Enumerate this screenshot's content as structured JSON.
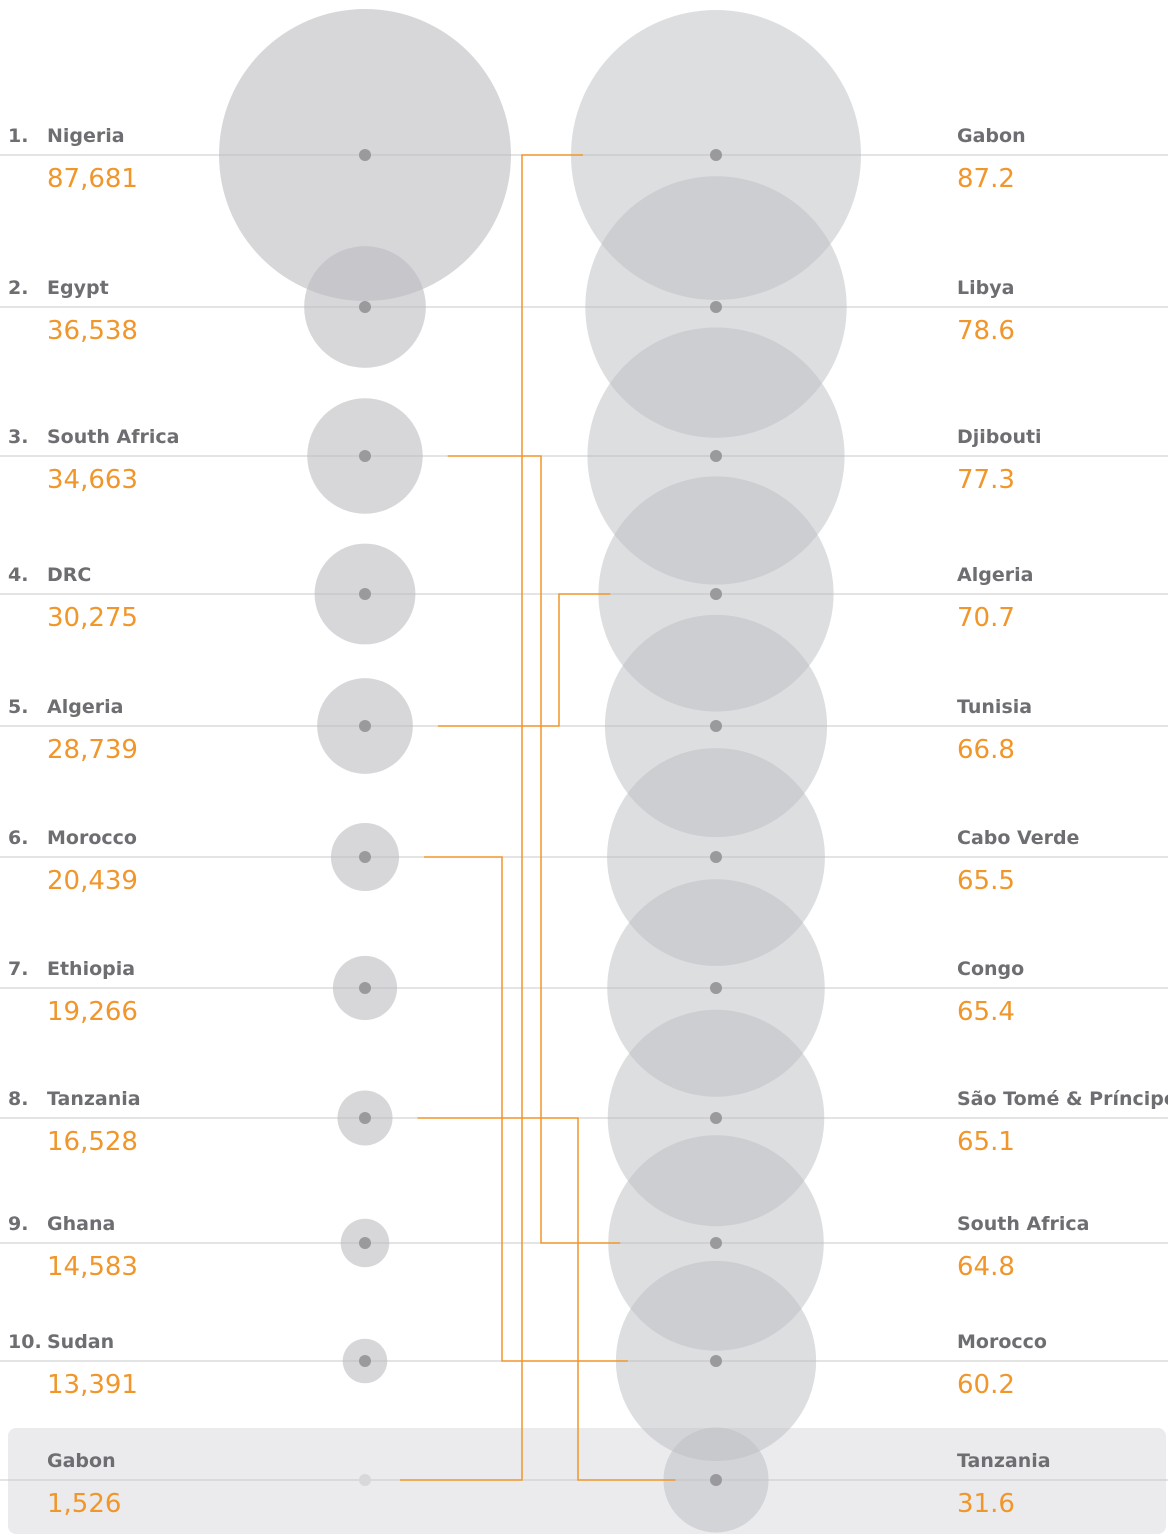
{
  "chart_data": {
    "type": "bubble",
    "left": {
      "ranks": [
        "1.",
        "2.",
        "3.",
        "4.",
        "5.",
        "6.",
        "7.",
        "8.",
        "9.",
        "10.",
        null
      ],
      "names": [
        "Nigeria",
        "Egypt",
        "South Africa",
        "DRC",
        "Algeria",
        "Morocco",
        "Ethiopia",
        "Tanzania",
        "Ghana",
        "Sudan",
        "Gabon"
      ],
      "values": [
        87681,
        36538,
        34663,
        30275,
        28739,
        20439,
        19266,
        16528,
        14583,
        13391,
        1526
      ],
      "value_labels": [
        "87,681",
        "36,538",
        "34,663",
        "30,275",
        "28,739",
        "20,439",
        "19,266",
        "16,528",
        "14,583",
        "13,391",
        "1,526"
      ]
    },
    "right": {
      "names": [
        "Gabon",
        "Libya",
        "Djibouti",
        "Algeria",
        "Tunisia",
        "Cabo Verde",
        "Congo",
        "São Tomé & Príncipe",
        "South Africa",
        "Morocco",
        "Tanzania"
      ],
      "values": [
        87.2,
        78.6,
        77.3,
        70.7,
        66.8,
        65.5,
        65.4,
        65.1,
        64.8,
        60.2,
        31.6
      ]
    },
    "bubble_color": "#bcbdc1",
    "link_color": "#f0962a",
    "value_color": "#f0962a"
  }
}
